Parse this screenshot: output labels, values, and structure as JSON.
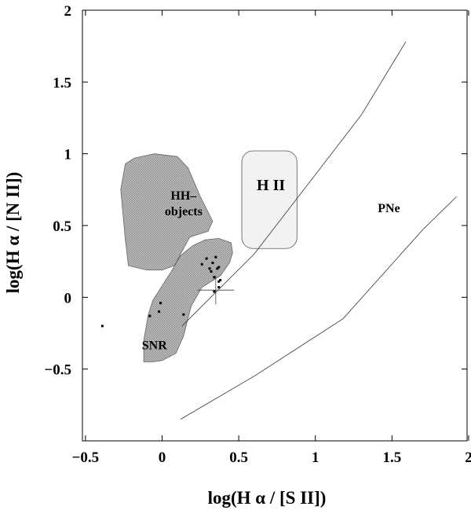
{
  "chart_data": {
    "type": "scatter",
    "xlabel": "log(H α / [S II])",
    "ylabel": "log(H α / [N II])",
    "xlim": [
      -0.52,
      1.99
    ],
    "ylim": [
      -1.0,
      2.0
    ],
    "x_ticks": [
      {
        "value": -0.5,
        "label": "−0.5"
      },
      {
        "value": 0,
        "label": "0"
      },
      {
        "value": 0.5,
        "label": "0.5"
      },
      {
        "value": 1,
        "label": "1"
      },
      {
        "value": 1.5,
        "label": "1.5"
      },
      {
        "value": 2,
        "label": "2"
      }
    ],
    "y_ticks": [
      {
        "value": -0.5,
        "label": "−0.5"
      },
      {
        "value": 0,
        "label": "0"
      },
      {
        "value": 0.5,
        "label": "0.5"
      },
      {
        "value": 1,
        "label": "1"
      },
      {
        "value": 1.5,
        "label": "1.5"
      },
      {
        "value": 2,
        "label": "2"
      }
    ],
    "grid": false,
    "regions": [
      {
        "label": [
          "HH–",
          "objects"
        ],
        "label_pos": [
          0.14,
          0.66
        ],
        "fill": "#b4b4b4",
        "outline": [
          [
            -0.24,
            0.93
          ],
          [
            -0.18,
            0.97
          ],
          [
            -0.05,
            1.0
          ],
          [
            0.1,
            0.98
          ],
          [
            0.17,
            0.9
          ],
          [
            0.25,
            0.7
          ],
          [
            0.33,
            0.53
          ],
          [
            0.3,
            0.46
          ],
          [
            0.18,
            0.42
          ],
          [
            0.08,
            0.22
          ],
          [
            0.0,
            0.19
          ],
          [
            -0.1,
            0.19
          ],
          [
            -0.22,
            0.22
          ],
          [
            -0.24,
            0.4
          ],
          [
            -0.27,
            0.75
          ]
        ]
      },
      {
        "label": [
          "SNR"
        ],
        "label_pos": [
          -0.05,
          -0.33
        ],
        "fill": "#b4b4b4",
        "outline": [
          [
            -0.12,
            -0.45
          ],
          [
            -0.12,
            -0.3
          ],
          [
            -0.09,
            -0.12
          ],
          [
            -0.06,
            -0.02
          ],
          [
            0.0,
            0.08
          ],
          [
            0.06,
            0.18
          ],
          [
            0.12,
            0.29
          ],
          [
            0.2,
            0.36
          ],
          [
            0.28,
            0.4
          ],
          [
            0.37,
            0.41
          ],
          [
            0.45,
            0.38
          ],
          [
            0.46,
            0.31
          ],
          [
            0.44,
            0.24
          ],
          [
            0.38,
            0.15
          ],
          [
            0.26,
            0.07
          ],
          [
            0.19,
            -0.06
          ],
          [
            0.14,
            -0.27
          ],
          [
            0.09,
            -0.39
          ],
          [
            0.0,
            -0.44
          ],
          [
            -0.06,
            -0.45
          ]
        ]
      },
      {
        "label": [
          "H II"
        ],
        "label_pos": [
          0.71,
          0.78
        ],
        "fill": "#f2f2f2",
        "shape": "rounded-rect",
        "x_range": [
          0.52,
          0.88
        ],
        "y_range": [
          0.34,
          1.02
        ]
      }
    ],
    "annotations": [
      {
        "text": "PNe",
        "x": 1.48,
        "y": 0.62
      }
    ],
    "boundary_lines": [
      {
        "x": [
          0.13,
          0.6,
          1.3,
          1.59
        ],
        "y": [
          -0.2,
          0.3,
          1.27,
          1.78
        ]
      },
      {
        "x": [
          0.12,
          0.6,
          1.18,
          1.7,
          1.92
        ],
        "y": [
          -0.85,
          -0.55,
          -0.15,
          0.47,
          0.7
        ]
      }
    ],
    "points": {
      "x": [
        -0.39,
        -0.08,
        -0.02,
        -0.01,
        0.14,
        0.26,
        0.29,
        0.31,
        0.32,
        0.33,
        0.34,
        0.34,
        0.35,
        0.36,
        0.37,
        0.37,
        0.37,
        0.38
      ],
      "y": [
        -0.2,
        -0.13,
        -0.1,
        -0.04,
        -0.12,
        0.23,
        0.27,
        0.2,
        0.18,
        0.24,
        0.04,
        0.14,
        0.28,
        0.2,
        0.21,
        0.11,
        0.07,
        0.12
      ]
    },
    "error_bar": {
      "x": 0.35,
      "y": 0.05,
      "xerr": 0.12,
      "yerr": 0.1
    }
  }
}
